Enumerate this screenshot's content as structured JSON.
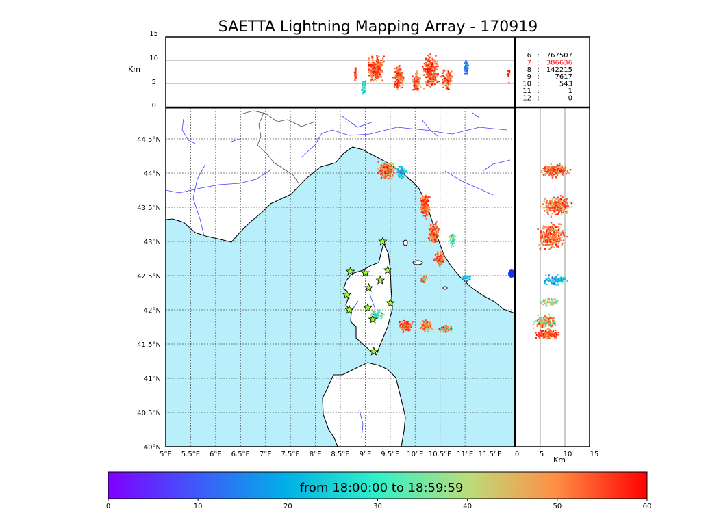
{
  "title": "SAETTA Lightning Mapping Array - 170919",
  "colors": {
    "sea": "#b9eefb",
    "land": "#ffffff",
    "river": "#3a3aff",
    "coast": "#000000",
    "border": "#444444",
    "station_fill": "#9cff2e"
  },
  "top_panel": {
    "y_unit": "Km",
    "y_ticks": [
      "0",
      "5",
      "10",
      "15"
    ],
    "y_range": [
      0,
      15
    ]
  },
  "map": {
    "lon_range": [
      5,
      12
    ],
    "lat_range": [
      40,
      44.95
    ],
    "lon_ticks": [
      "5°E",
      "5.5°E",
      "6°E",
      "6.5°E",
      "7°E",
      "7.5°E",
      "8°E",
      "8.5°E",
      "9°E",
      "9.5°E",
      "10°E",
      "10.5°E",
      "11°E",
      "11.5°E"
    ],
    "lat_ticks": [
      "40°N",
      "40.5°N",
      "41°N",
      "41.5°N",
      "42°N",
      "42.5°N",
      "43°N",
      "43.5°N",
      "44°N",
      "44.5°N"
    ],
    "stations": [
      {
        "lon": 9.35,
        "lat": 43.0
      },
      {
        "lon": 8.7,
        "lat": 42.56
      },
      {
        "lon": 9.0,
        "lat": 42.54
      },
      {
        "lon": 9.45,
        "lat": 42.58
      },
      {
        "lon": 9.3,
        "lat": 42.43
      },
      {
        "lon": 9.07,
        "lat": 42.32
      },
      {
        "lon": 8.63,
        "lat": 42.22
      },
      {
        "lon": 9.5,
        "lat": 42.1
      },
      {
        "lon": 9.05,
        "lat": 42.03
      },
      {
        "lon": 8.68,
        "lat": 42.0
      },
      {
        "lon": 9.15,
        "lat": 41.86
      },
      {
        "lon": 9.17,
        "lat": 41.39
      }
    ]
  },
  "side_panel": {
    "x_unit": "Km",
    "x_ticks": [
      "0",
      "5",
      "10",
      "15"
    ],
    "x_range": [
      0,
      15
    ]
  },
  "legend": {
    "rows": [
      {
        "n": "6",
        "sep": ":",
        "count": "767507",
        "color": "#000000"
      },
      {
        "n": "7",
        "sep": ":",
        "count": "386636",
        "color": "#ff0000"
      },
      {
        "n": "8",
        "sep": ":",
        "count": "142215",
        "color": "#000000"
      },
      {
        "n": "9",
        "sep": ":",
        "count": "7617",
        "color": "#000000"
      },
      {
        "n": "10",
        "sep": ":",
        "count": "543",
        "color": "#000000"
      },
      {
        "n": "11",
        "sep": ":",
        "count": "1",
        "color": "#000000"
      },
      {
        "n": "12",
        "sep": ":",
        "count": "0",
        "color": "#000000"
      }
    ]
  },
  "colorbar": {
    "label": "from 18:00:00 to 18:59:59",
    "ticks": [
      "0",
      "10",
      "20",
      "30",
      "40",
      "50",
      "60"
    ],
    "range": [
      0,
      60
    ]
  }
}
